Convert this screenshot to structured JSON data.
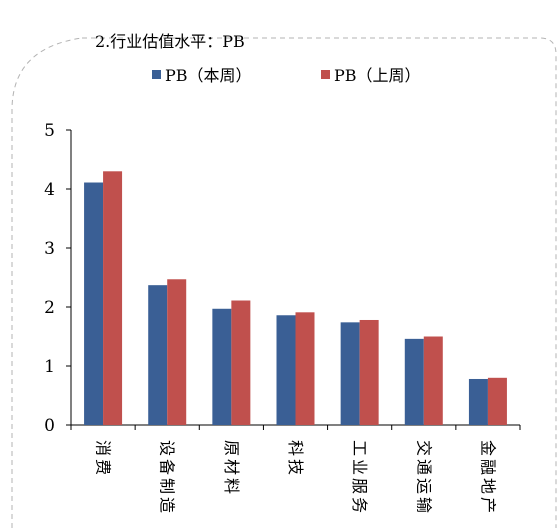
{
  "chart_data": {
    "type": "bar",
    "title": "2.行业估值水平：PB",
    "categories": [
      "消费",
      "设备制造",
      "原材料",
      "科技",
      "工业服务",
      "交通运输",
      "金融地产"
    ],
    "series": [
      {
        "name": "PB（本周）",
        "color": "#3A5F95",
        "values": [
          4.11,
          2.37,
          1.97,
          1.86,
          1.74,
          1.46,
          0.78
        ]
      },
      {
        "name": "PB（上周）",
        "color": "#C0504D",
        "values": [
          4.3,
          2.47,
          2.11,
          1.91,
          1.78,
          1.5,
          0.8
        ]
      }
    ],
    "ylim": [
      0,
      5
    ],
    "yticks": [
      0,
      1,
      2,
      3,
      4,
      5
    ],
    "xlabel": "",
    "ylabel": "",
    "grid": false,
    "legend_position": "top-center"
  }
}
